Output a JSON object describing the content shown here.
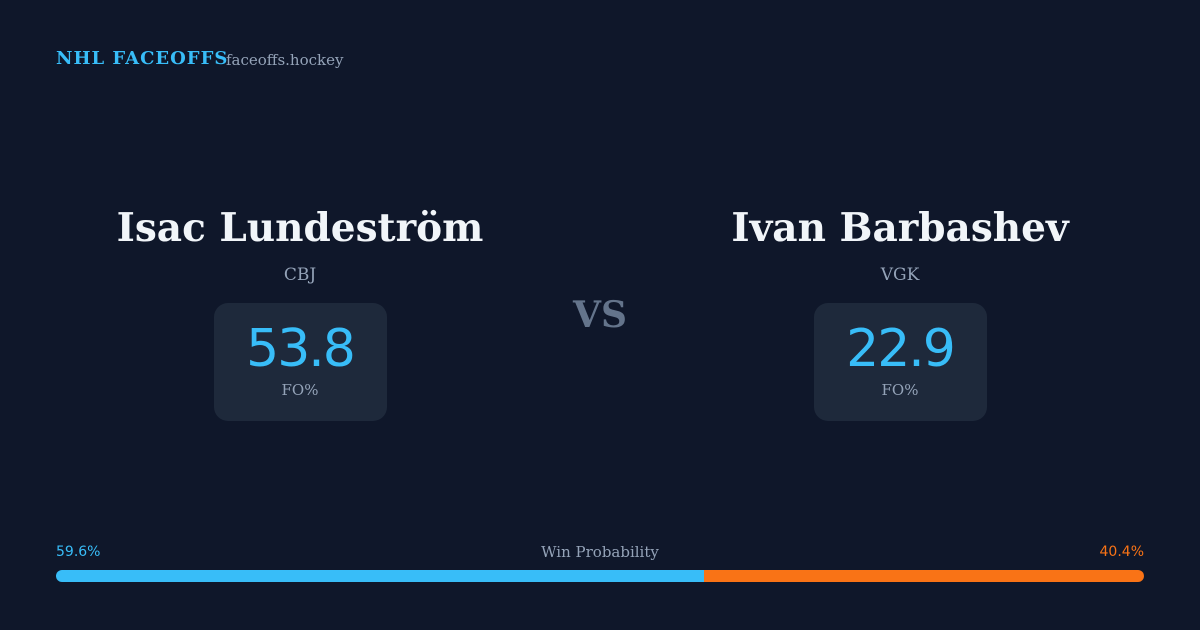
{
  "header": {
    "title": "NHL FACEOFFS",
    "site": "faceoffs.hockey"
  },
  "players": [
    {
      "name": "Isac Lundeström",
      "team": "CBJ",
      "fo_pct": 53.8,
      "fo_label": "FO%"
    },
    {
      "name": "Ivan Barbashev",
      "team": "VGK",
      "fo_pct": 22.9,
      "fo_label": "FO%"
    }
  ],
  "vs": "VS",
  "win_probability": {
    "label": "Win Probability",
    "left": {
      "value": 59.6,
      "label": "59.6%",
      "color": "#38bdf8"
    },
    "right": {
      "value": 40.4,
      "label": "40.4%",
      "color": "#f97316"
    }
  }
}
